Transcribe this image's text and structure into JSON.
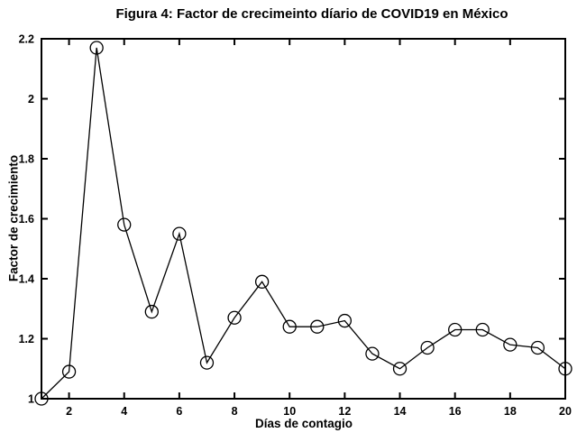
{
  "figure": {
    "background": "#ffffff"
  },
  "chart_data": {
    "type": "line",
    "title": "Figura 4: Factor de crecimeinto díario de COVID19 en México",
    "xlabel": "Días de contagio",
    "ylabel": "Factor de crecimiento",
    "x": [
      1,
      2,
      3,
      4,
      5,
      6,
      7,
      8,
      9,
      10,
      11,
      12,
      13,
      14,
      15,
      16,
      17,
      18,
      19,
      20
    ],
    "y": [
      1.0,
      1.09,
      2.17,
      1.58,
      1.29,
      1.55,
      1.12,
      1.27,
      1.39,
      1.24,
      1.24,
      1.26,
      1.15,
      1.1,
      1.17,
      1.23,
      1.23,
      1.18,
      1.17,
      1.1
    ],
    "xlim": [
      1,
      20
    ],
    "ylim": [
      1.0,
      2.2
    ],
    "xticks": {
      "values": [
        2,
        4,
        6,
        8,
        10,
        12,
        14,
        16,
        18,
        20
      ],
      "labels": [
        "2",
        "4",
        "6",
        "8",
        "10",
        "12",
        "14",
        "16",
        "18",
        "20"
      ]
    },
    "yticks": {
      "values": [
        1.0,
        1.2,
        1.4,
        1.6,
        1.8,
        2.0,
        2.2
      ],
      "labels": [
        "1",
        "1.2",
        "1.4",
        "1.6",
        "1.8",
        "2",
        "2.2"
      ]
    },
    "grid": false,
    "legend": null,
    "line_color": "#000000",
    "axis_color": "#000000",
    "marker": "open-circle",
    "marker_radius": 7,
    "tick_style": "inward-all-sides"
  }
}
